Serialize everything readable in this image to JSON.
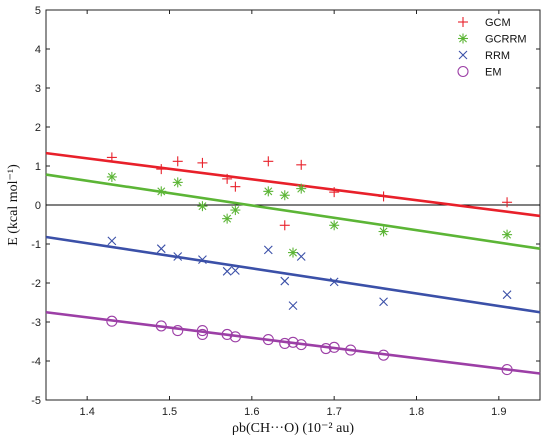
{
  "chart_data": {
    "type": "scatter",
    "xlabel": "ρb(CH···O) (10⁻² au)",
    "ylabel": "E (kcal mol⁻¹)",
    "xlim": [
      1.35,
      1.95
    ],
    "ylim": [
      -5,
      5
    ],
    "xticks": [
      "1.4",
      "1.5",
      "1.6",
      "1.7",
      "1.8",
      "1.9"
    ],
    "yticks": [
      "-5",
      "-4",
      "-3",
      "-2",
      "-1",
      "0",
      "1",
      "2",
      "3",
      "4",
      "5"
    ],
    "legend_position": "top-right",
    "zero_line": true,
    "series": [
      {
        "name": "GCM",
        "marker": "plus",
        "color": "#e8202a",
        "x": [
          1.43,
          1.49,
          1.51,
          1.54,
          1.57,
          1.58,
          1.62,
          1.64,
          1.66,
          1.7,
          1.76,
          1.91
        ],
        "y": [
          1.22,
          0.92,
          1.12,
          1.08,
          0.67,
          0.47,
          1.12,
          -0.52,
          1.03,
          0.33,
          0.22,
          0.07
        ],
        "fit": [
          [
            1.35,
            1.33
          ],
          [
            1.95,
            -0.28
          ]
        ]
      },
      {
        "name": "GCRRM",
        "marker": "asterisk",
        "color": "#5cb536",
        "x": [
          1.43,
          1.49,
          1.51,
          1.54,
          1.57,
          1.58,
          1.62,
          1.64,
          1.65,
          1.66,
          1.7,
          1.76,
          1.91
        ],
        "y": [
          0.72,
          0.35,
          0.58,
          -0.03,
          -0.35,
          -0.13,
          0.35,
          0.25,
          -1.22,
          0.42,
          -0.52,
          -0.68,
          -0.76
        ],
        "fit": [
          [
            1.35,
            0.78
          ],
          [
            1.95,
            -1.12
          ]
        ]
      },
      {
        "name": "RRM",
        "marker": "cross",
        "color": "#3b50a8",
        "x": [
          1.43,
          1.49,
          1.51,
          1.54,
          1.57,
          1.58,
          1.62,
          1.64,
          1.65,
          1.66,
          1.7,
          1.76,
          1.91
        ],
        "y": [
          -0.92,
          -1.12,
          -1.32,
          -1.4,
          -1.7,
          -1.68,
          -1.15,
          -1.95,
          -2.58,
          -1.32,
          -1.97,
          -2.48,
          -2.3
        ],
        "fit": [
          [
            1.35,
            -0.82
          ],
          [
            1.95,
            -2.75
          ]
        ]
      },
      {
        "name": "EM",
        "marker": "circle",
        "color": "#9c3fa6",
        "x": [
          1.43,
          1.49,
          1.51,
          1.54,
          1.54,
          1.57,
          1.58,
          1.62,
          1.64,
          1.65,
          1.66,
          1.69,
          1.7,
          1.72,
          1.76,
          1.91
        ],
        "y": [
          -2.98,
          -3.1,
          -3.22,
          -3.22,
          -3.32,
          -3.32,
          -3.38,
          -3.45,
          -3.55,
          -3.52,
          -3.58,
          -3.68,
          -3.65,
          -3.72,
          -3.85,
          -4.22
        ],
        "fit": [
          [
            1.35,
            -2.75
          ],
          [
            1.95,
            -4.32
          ]
        ]
      }
    ]
  }
}
